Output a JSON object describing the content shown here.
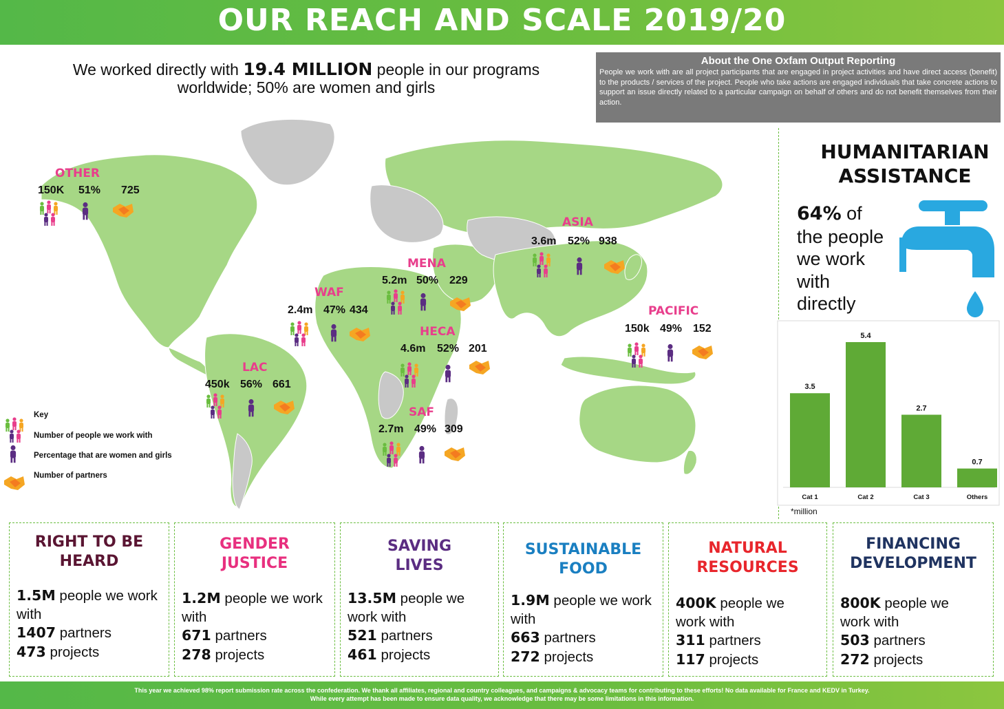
{
  "title": "OUR REACH AND SCALE 2019/20",
  "headline": {
    "pre": "We worked directly with ",
    "highlight": "19.4 MILLION",
    "post": " people in our programs",
    "line2": "worldwide; 50% are women and girls"
  },
  "about": {
    "title": "About the One Oxfam Output Reporting",
    "text": "People we work with are all project participants that are engaged in project activities and have direct access (benefit) to the products / services of the project. People who take actions are engaged individuals that take concrete actions to support an issue directly related to a particular campaign on behalf of others and do not benefit themselves from their action."
  },
  "regions": [
    {
      "name": "OTHER",
      "people": "150K",
      "women": "51%",
      "partners": "725"
    },
    {
      "name": "ASIA",
      "people": "3.6m",
      "women": "52%",
      "partners": "938"
    },
    {
      "name": "MENA",
      "people": "5.2m",
      "women": "50%",
      "partners": "229"
    },
    {
      "name": "WAF",
      "people": "2.4m",
      "women": "47%",
      "partners": "434"
    },
    {
      "name": "HECA",
      "people": "4.6m",
      "women": "52%",
      "partners": "201"
    },
    {
      "name": "PACIFIC",
      "people": "150k",
      "women": "49%",
      "partners": "152"
    },
    {
      "name": "LAC",
      "people": "450k",
      "women": "56%",
      "partners": "661"
    },
    {
      "name": "SAF",
      "people": "2.7m",
      "women": "49%",
      "partners": "309"
    }
  ],
  "key": {
    "title": "Key",
    "people": "Number of people we work with",
    "women": "Percentage that are women and girls",
    "partners": "Number of partners"
  },
  "humanitarian": {
    "title_line1": "HUMANITARIAN",
    "title_line2": "ASSISTANCE",
    "pct": "64%",
    "of": " of",
    "line2": "the people",
    "line3": "we work",
    "line4": "with",
    "line5": "directly",
    "note": "*million"
  },
  "chart_data": {
    "type": "bar",
    "categories": [
      "Cat 1",
      "Cat 2",
      "Cat 3",
      "Others"
    ],
    "values": [
      3.5,
      5.4,
      2.7,
      0.7
    ],
    "value_labels": [
      "3.5",
      "5.4",
      "2.7",
      "0.7"
    ],
    "ylim": [
      0,
      5.4
    ],
    "color": "#5faa36"
  },
  "themes": [
    {
      "title1": "RIGHT TO BE",
      "title2": "HEARD",
      "color": "#5a1532",
      "people": "1.5M",
      "people_text": " people we work",
      "with_text": "with",
      "partners": "1407",
      "partners_text": " partners",
      "projects": "473",
      "projects_text": " projects"
    },
    {
      "title1": "GENDER",
      "title2": "JUSTICE",
      "color": "#e8307f",
      "people": "1.2M",
      "people_text": " people we work",
      "with_text": "with",
      "partners": "671",
      "partners_text": " partners",
      "projects": "278",
      "projects_text": " projects"
    },
    {
      "title1": "SAVING",
      "title2": "LIVES",
      "color": "#5b2d82",
      "people": "13.5M",
      "people_text": " people we",
      "with_text": "work with",
      "partners": "521",
      "partners_text": " partners",
      "projects": "461",
      "projects_text": " projects"
    },
    {
      "title1": "SUSTAINABLE",
      "title2": "FOOD",
      "color": "#1a7fc1",
      "people": "1.9M",
      "people_text": " people we work",
      "with_text": "with",
      "partners": "663",
      "partners_text": " partners",
      "projects": "272",
      "projects_text": " projects"
    },
    {
      "title1": "NATURAL",
      "title2": "RESOURCES",
      "color": "#e8262c",
      "people": "400K",
      "people_text": " people we",
      "with_text": "work with",
      "partners": "311",
      "partners_text": " partners",
      "projects": "117",
      "projects_text": " projects"
    },
    {
      "title1": "FINANCING",
      "title2": "DEVELOPMENT",
      "color": "#1f3360",
      "people": "800K",
      "people_text": " people we",
      "with_text": "work with",
      "partners": "503",
      "partners_text": " partners",
      "projects": "272",
      "projects_text": " projects"
    }
  ],
  "footer": {
    "line1": "This year we achieved 98% report submission rate across the confederation.  We thank all affiliates, regional and country colleagues, and campaigns & advocacy teams for contributing to these efforts! No data available for France and KEDV in Turkey.",
    "line2": "While every attempt has been made to ensure data quality, we acknowledge that there may be some limitations in this information."
  },
  "colors": {
    "green": "#6abd3f",
    "map_land": "#a6d785",
    "map_grey": "#c8c8c8",
    "pink": "#e83e8c",
    "purple": "#5b2d82",
    "orange": "#f5a623",
    "tap_blue": "#29a8e0"
  },
  "icons": [
    "people-group-icon",
    "woman-icon",
    "handshake-icon",
    "water-tap-icon"
  ]
}
